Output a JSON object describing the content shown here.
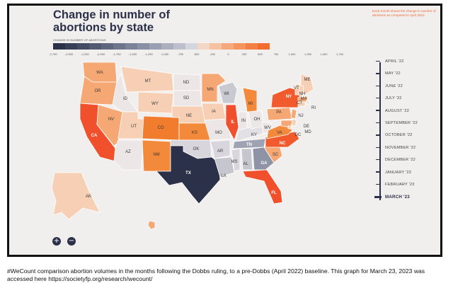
{
  "title": "Change in number of abortions by state",
  "note": "Each month shows the change in number of abortions as compared to April 2022.",
  "legend": {
    "title": "CHANGE IN NUMBER OF ABORTIONS",
    "ticks": [
      "-2,750",
      "-2,500",
      "-2,250",
      "-2,000",
      "-1,750",
      "-1,500",
      "-1,250",
      "-1,000",
      "-750",
      "-500",
      "-250",
      "0",
      "250",
      "500",
      "750",
      "1,000",
      "1,250",
      "1,500",
      "1,750"
    ],
    "colors": [
      "#2b3148",
      "#383e55",
      "#454b62",
      "#535970",
      "#60667d",
      "#6e748a",
      "#7c8297",
      "#8a90a4",
      "#9a9fb1",
      "#abafbe",
      "#bcc0cc",
      "#d4d6dd",
      "#f3d7c4",
      "#f5c19f",
      "#f6aa7c",
      "#f5955e",
      "#f47f43",
      "#f26b2f"
    ]
  },
  "states": [
    {
      "abbr": "WA",
      "label": "WA",
      "color": "#f5a774"
    },
    {
      "abbr": "OR",
      "label": "OR",
      "color": "#f5a774"
    },
    {
      "abbr": "CA",
      "label": "CA",
      "color": "#f0512c"
    },
    {
      "abbr": "ID",
      "label": "ID",
      "color": "#ece7e6"
    },
    {
      "abbr": "NV",
      "label": "NV",
      "color": "#f5a774"
    },
    {
      "abbr": "UT",
      "label": "UT",
      "color": "#f6cfb4"
    },
    {
      "abbr": "AZ",
      "label": "AZ",
      "color": "#ece7e6"
    },
    {
      "abbr": "MT",
      "label": "MT",
      "color": "#f6cfb4"
    },
    {
      "abbr": "WY",
      "label": "WY",
      "color": "#f6cfb4"
    },
    {
      "abbr": "CO",
      "label": "CO",
      "color": "#f27c2d"
    },
    {
      "abbr": "NM",
      "label": "NM",
      "color": "#f2893b"
    },
    {
      "abbr": "ND",
      "label": "ND",
      "color": "#ece7e6"
    },
    {
      "abbr": "SD",
      "label": "SD",
      "color": "#ece7e6"
    },
    {
      "abbr": "NE",
      "label": "NE",
      "color": "#f6cfb4"
    },
    {
      "abbr": "KS",
      "label": "KS",
      "color": "#f2893b"
    },
    {
      "abbr": "OK",
      "label": "OK",
      "color": "#d8d6dc"
    },
    {
      "abbr": "TX",
      "label": "TX",
      "color": "#2b3148"
    },
    {
      "abbr": "MN",
      "label": "MN",
      "color": "#f5a774"
    },
    {
      "abbr": "IA",
      "label": "IA",
      "color": "#f6cfb4"
    },
    {
      "abbr": "MO",
      "label": "MO",
      "color": "#ece7e6"
    },
    {
      "abbr": "AR",
      "label": "AR",
      "color": "#d8d6dc"
    },
    {
      "abbr": "LA",
      "label": "LA",
      "color": "#c6c6cf"
    },
    {
      "abbr": "WI",
      "label": "WI",
      "color": "#c8c9d1"
    },
    {
      "abbr": "IL",
      "label": "IL",
      "color": "#f0512c"
    },
    {
      "abbr": "MS",
      "label": "MS",
      "color": "#d8d6dc"
    },
    {
      "abbr": "MI",
      "label": "MI",
      "color": "#f2893b"
    },
    {
      "abbr": "IN",
      "label": "IN",
      "color": "#ece7e6"
    },
    {
      "abbr": "KY",
      "label": "KY",
      "color": "#e2e0e4"
    },
    {
      "abbr": "TN",
      "label": "TN",
      "color": "#9ea2b3"
    },
    {
      "abbr": "AL",
      "label": "AL",
      "color": "#c6c6cf"
    },
    {
      "abbr": "OH",
      "label": "OH",
      "color": "#ece7e6"
    },
    {
      "abbr": "WV",
      "label": "WV",
      "color": "#ece7e6"
    },
    {
      "abbr": "GA",
      "label": "GA",
      "color": "#8e93a6"
    },
    {
      "abbr": "FL",
      "label": "FL",
      "color": "#f0512c"
    },
    {
      "abbr": "SC",
      "label": "SC",
      "color": "#f5a774"
    },
    {
      "abbr": "NC",
      "label": "NC",
      "color": "#f05a2c"
    },
    {
      "abbr": "VA",
      "label": "VA",
      "color": "#f2893b"
    },
    {
      "abbr": "PA",
      "label": "PA",
      "color": "#f5a774"
    },
    {
      "abbr": "NY",
      "label": "NY",
      "color": "#f05a2c"
    },
    {
      "abbr": "ME",
      "label": "ME",
      "color": "#f6cfb4"
    },
    {
      "abbr": "VT",
      "label": "VT",
      "color": "#f6cfb4"
    },
    {
      "abbr": "NH",
      "label": "NH",
      "color": "#f6cfb4"
    },
    {
      "abbr": "MA",
      "label": "MA",
      "color": "#f5a774"
    },
    {
      "abbr": "RI",
      "label": "RI",
      "color": "#ece7e6"
    },
    {
      "abbr": "CT",
      "label": "CT",
      "color": "#f6cfb4"
    },
    {
      "abbr": "NJ",
      "label": "NJ",
      "color": "#f5a774"
    },
    {
      "abbr": "DE",
      "label": "DE",
      "color": "#f6cfb4"
    },
    {
      "abbr": "MD",
      "label": "MD",
      "color": "#f5a774"
    },
    {
      "abbr": "DC",
      "label": "DC",
      "color": "#f6cfb4"
    },
    {
      "abbr": "AK",
      "label": "AK",
      "color": "#f6cfb4"
    },
    {
      "abbr": "HI",
      "label": "",
      "color": "#f5a774"
    }
  ],
  "timeline": {
    "months": [
      "APRIL '22",
      "MAY '22",
      "JUNE '22",
      "JULY '22",
      "AUGUST '22",
      "SEPTEMBER '22",
      "OCTOBER '22",
      "NOVEMBER '22",
      "DECEMBER '22",
      "JANUARY '23",
      "FEBRUARY '23",
      "MARCH '23"
    ],
    "active": "MARCH '23"
  },
  "zoom": {
    "in_label": "+",
    "out_label": "−"
  },
  "caption": "#WeCount comparison abortion volumes in the months following the Dobbs ruling, to a pre-Dobbs (April 2022) baseline. This graph for March 23, 2023 was accessed here https://societyfp.org/research/wecount/"
}
